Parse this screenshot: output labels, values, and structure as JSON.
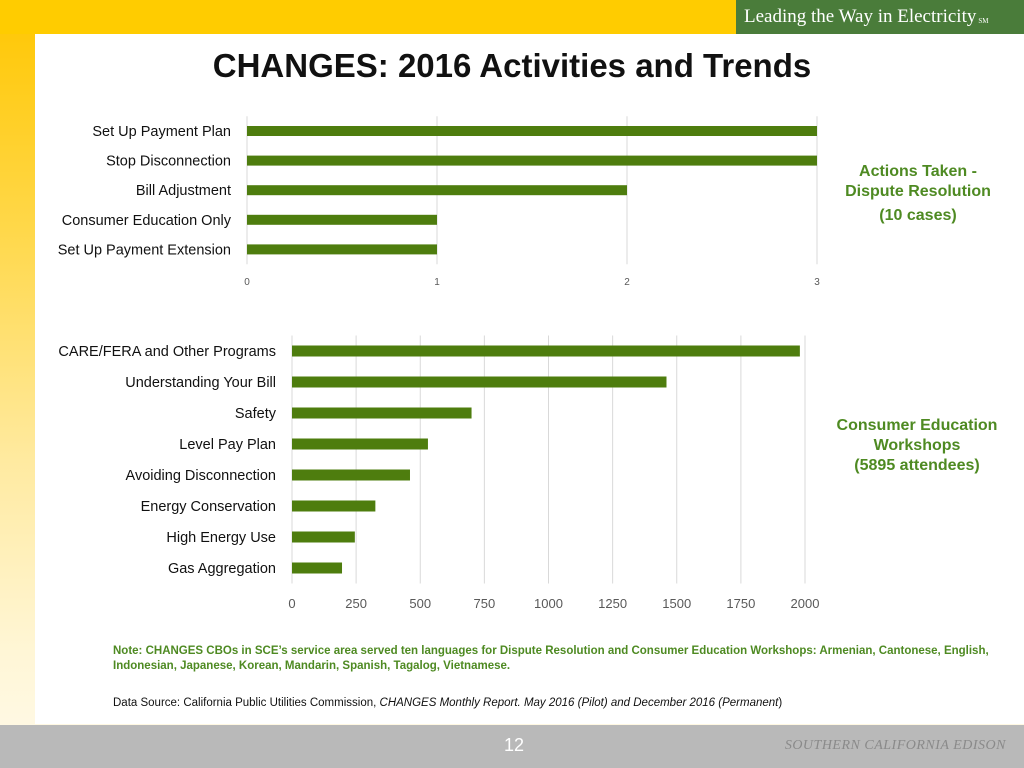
{
  "brand": {
    "tagline": "Leading the Way in Electricity",
    "mark": "SM"
  },
  "title": "CHANGES: 2016 Activities and Trends",
  "chart_data": [
    {
      "type": "bar",
      "orientation": "horizontal",
      "categories": [
        "Set Up Payment Plan",
        "Stop Disconnection",
        "Bill Adjustment",
        "Consumer Education Only",
        "Set Up Payment Extension"
      ],
      "values": [
        3,
        3,
        2,
        1,
        1
      ],
      "xlim": [
        0,
        3
      ],
      "xticks": [
        0,
        1,
        2,
        3
      ],
      "grid": true,
      "bar_color": "#4e7d0e",
      "title": "Actions Taken - Dispute Resolution",
      "annotation": "(10 cases)"
    },
    {
      "type": "bar",
      "orientation": "horizontal",
      "categories": [
        "CARE/FERA and Other Programs",
        "Understanding Your Bill",
        "Safety",
        "Level Pay Plan",
        "Avoiding Disconnection",
        "Energy Conservation",
        "High Energy Use",
        "Gas Aggregation"
      ],
      "values": [
        1980,
        1460,
        700,
        530,
        460,
        325,
        245,
        195
      ],
      "xlim": [
        0,
        2000
      ],
      "xticks": [
        0,
        250,
        500,
        750,
        1000,
        1250,
        1500,
        1750,
        2000
      ],
      "grid": true,
      "bar_color": "#4e7d0e",
      "title": "Consumer Education Workshops",
      "annotation": "(5895 attendees)"
    }
  ],
  "labels": {
    "chart1_line1": "Actions Taken -",
    "chart1_line2": "Dispute Resolution",
    "chart1_line3": "(10 cases)",
    "chart2_line1": "Consumer Education",
    "chart2_line2": "Workshops",
    "chart2_line3": "(5895 attendees)"
  },
  "note": "Note: CHANGES CBOs in SCE’s service area served ten languages for Dispute Resolution and Consumer Education Workshops: Armenian, Cantonese, English, Indonesian, Japanese, Korean, Mandarin, Spanish, Tagalog, Vietnamese.",
  "source": {
    "prefix": "Data Source: California Public Utilities Commission, ",
    "italic": "CHANGES Monthly Report. May 2016 (Pilot) and December 2016 (Permanent",
    "suffix": ")"
  },
  "footer": {
    "page_number": "12",
    "company": "SOUTHERN CALIFORNIA EDISON"
  },
  "colors": {
    "brand_green": "#4a7c3a",
    "label_green": "#4e8a22",
    "bar": "#4e7d0e",
    "footer_gray": "#b9b9b9"
  }
}
